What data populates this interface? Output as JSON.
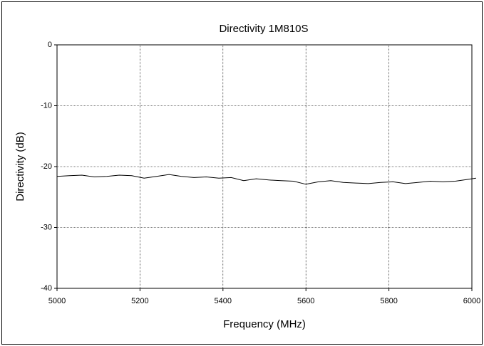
{
  "chart_data": {
    "type": "line",
    "title": "Directivity 1M810S",
    "xlabel": "Frequency (MHz)",
    "ylabel": "Directivity (dB)",
    "xlim": [
      5000,
      6000
    ],
    "ylim": [
      -40,
      0
    ],
    "x_ticks": [
      "5000",
      "5200",
      "5400",
      "5600",
      "5800",
      "6000"
    ],
    "y_ticks": [
      "0",
      "-10",
      "-20",
      "-30",
      "-40"
    ],
    "grid": true,
    "line_color": "#000000",
    "series": [
      {
        "x": [
          5000,
          5030,
          5060,
          5090,
          5120,
          5150,
          5180,
          5210,
          5240,
          5270,
          5300,
          5330,
          5360,
          5390,
          5420,
          5450,
          5480,
          5510,
          5540,
          5570,
          5600,
          5630,
          5660,
          5690,
          5720,
          5750,
          5780,
          5810,
          5840,
          5870,
          5900,
          5930,
          5960,
          5990,
          6010
        ],
        "y": [
          -21.6,
          -21.5,
          -21.4,
          -21.7,
          -21.6,
          -21.4,
          -21.5,
          -21.9,
          -21.6,
          -21.3,
          -21.6,
          -21.8,
          -21.7,
          -21.9,
          -21.8,
          -22.3,
          -22.0,
          -22.2,
          -22.3,
          -22.4,
          -22.9,
          -22.5,
          -22.3,
          -22.6,
          -22.7,
          -22.8,
          -22.6,
          -22.5,
          -22.8,
          -22.6,
          -22.4,
          -22.5,
          -22.4,
          -22.1,
          -21.9
        ]
      }
    ]
  }
}
